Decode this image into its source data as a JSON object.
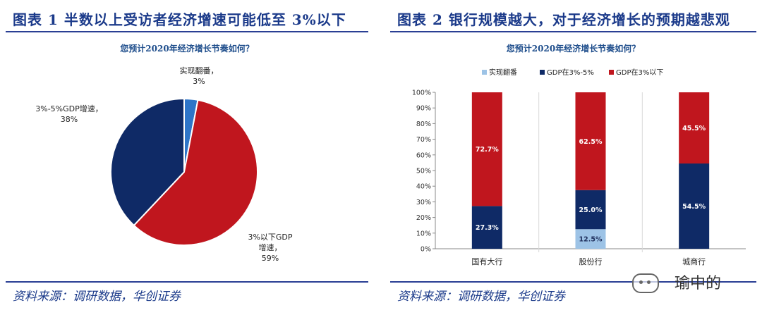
{
  "left": {
    "title": "图表 1   半数以上受访者经济增速可能低至 3%以下",
    "source": "资料来源：调研数据，华创证券"
  },
  "right": {
    "title": "图表 2   银行规模越大，对于经济增长的预期越悲观",
    "source": "资料来源：调研数据，华创证券"
  },
  "watermark": {
    "text": "瑜中的"
  },
  "chart_data": [
    {
      "type": "pie",
      "title": "您预计2020年经济增长节奏如何？",
      "slices": [
        {
          "label": "实现翻番，",
          "value": 3,
          "value_label": "3%",
          "color": "#2e75c8"
        },
        {
          "label": "3%以下GDP增速，",
          "value": 59,
          "value_label": "59%",
          "color": "#c0161e"
        },
        {
          "label": "3%-5%GDP增速，",
          "value": 38,
          "value_label": "38%",
          "color": "#0f2a66"
        }
      ]
    },
    {
      "type": "bar",
      "stacked": true,
      "title": "您预计2020年经济增长节奏如何？",
      "categories": [
        "国有大行",
        "股份行",
        "城商行"
      ],
      "series": [
        {
          "name": "实现翻番",
          "color": "#9dc3e6",
          "values": [
            0,
            12.5,
            0
          ],
          "labels": [
            "",
            "12.5%",
            ""
          ]
        },
        {
          "name": "GDP在3%-5%",
          "color": "#0f2a66",
          "values": [
            27.3,
            25.0,
            54.5
          ],
          "labels": [
            "27.3%",
            "25.0%",
            "54.5%"
          ]
        },
        {
          "name": "GDP在3%以下",
          "color": "#c0161e",
          "values": [
            72.7,
            62.5,
            45.5
          ],
          "labels": [
            "72.7%",
            "62.5%",
            "45.5%"
          ]
        }
      ],
      "ylim": [
        0,
        100
      ],
      "yticks": [
        "0%",
        "10%",
        "20%",
        "30%",
        "40%",
        "50%",
        "60%",
        "70%",
        "80%",
        "90%",
        "100%"
      ],
      "legend_position": "top",
      "grid": false
    }
  ]
}
